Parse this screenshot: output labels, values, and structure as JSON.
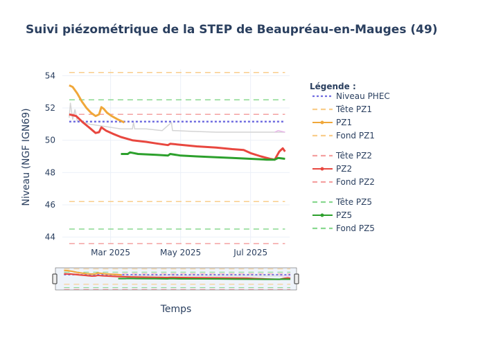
{
  "chart_data": {
    "type": "line",
    "title": "Suivi piézométrique de la STEP de Beaupréau-en-Mauges (49)",
    "xlabel": "Temps",
    "ylabel": "Niveau (NGF IGN69)",
    "ylim": [
      43.6,
      54.4
    ],
    "xlim": [
      "2025-01-18",
      "2025-08-04"
    ],
    "yticks": [
      44,
      46,
      48,
      50,
      52,
      54
    ],
    "xticks": [
      {
        "date": "2025-03-01",
        "label": "Mar 2025"
      },
      {
        "date": "2025-05-01",
        "label": "May 2025"
      },
      {
        "date": "2025-07-01",
        "label": "Jul 2025"
      }
    ],
    "grid": true,
    "legend_title": "Légende :",
    "legend_position": "right",
    "rangeslider": true,
    "series": [
      {
        "name": "Niveau PHEC",
        "style": "dotted",
        "color": "#6f6ce0",
        "x": [
          "2025-01-24",
          "2025-07-31"
        ],
        "y": [
          51.15,
          51.15
        ]
      },
      {
        "name": "Tête PZ1",
        "style": "dashed",
        "color": "#f9cd8b",
        "x": [
          "2025-01-24",
          "2025-07-31"
        ],
        "y": [
          54.2,
          54.2
        ]
      },
      {
        "name": "PZ1",
        "style": "solid",
        "color": "#f0a73a",
        "width": 3,
        "x": [
          "2025-01-24",
          "2025-01-27",
          "2025-01-31",
          "2025-02-04",
          "2025-02-08",
          "2025-02-12",
          "2025-02-16",
          "2025-02-19",
          "2025-02-21",
          "2025-02-23",
          "2025-02-26",
          "2025-03-02",
          "2025-03-07",
          "2025-03-13"
        ],
        "y": [
          53.4,
          53.3,
          52.9,
          52.4,
          52.0,
          51.7,
          51.5,
          51.6,
          52.05,
          51.95,
          51.7,
          51.5,
          51.3,
          51.1
        ]
      },
      {
        "name": "Fond PZ1",
        "style": "dashed",
        "color": "#f9cd8b",
        "x": [
          "2025-01-24",
          "2025-07-31"
        ],
        "y": [
          46.2,
          46.2
        ]
      },
      {
        "name": "Tête PZ2",
        "style": "dashed",
        "color": "#f4a0a0",
        "x": [
          "2025-01-24",
          "2025-07-31"
        ],
        "y": [
          51.6,
          51.6
        ]
      },
      {
        "name": "PZ2",
        "style": "solid",
        "color": "#e8473f",
        "width": 3,
        "x": [
          "2025-01-24",
          "2025-01-30",
          "2025-02-05",
          "2025-02-11",
          "2025-02-16",
          "2025-02-19",
          "2025-02-21",
          "2025-02-25",
          "2025-03-03",
          "2025-03-10",
          "2025-03-20",
          "2025-04-01",
          "2025-04-10",
          "2025-04-20",
          "2025-04-22",
          "2025-05-01",
          "2025-05-15",
          "2025-06-01",
          "2025-06-15",
          "2025-06-25",
          "2025-07-01",
          "2025-07-10",
          "2025-07-18",
          "2025-07-22",
          "2025-07-26",
          "2025-07-29",
          "2025-07-31"
        ],
        "y": [
          51.6,
          51.5,
          51.1,
          50.75,
          50.45,
          50.5,
          50.8,
          50.6,
          50.4,
          50.2,
          50.0,
          49.9,
          49.8,
          49.7,
          49.78,
          49.72,
          49.62,
          49.55,
          49.45,
          49.4,
          49.2,
          49.0,
          48.85,
          48.8,
          49.3,
          49.5,
          49.3
        ]
      },
      {
        "name": "Fond PZ2",
        "style": "dashed",
        "color": "#f4a0a0",
        "x": [
          "2025-01-24",
          "2025-07-31"
        ],
        "y": [
          43.6,
          43.6
        ]
      },
      {
        "name": "Tête PZ5",
        "style": "dashed",
        "color": "#88d88f",
        "x": [
          "2025-01-24",
          "2025-07-31"
        ],
        "y": [
          52.5,
          52.5
        ]
      },
      {
        "name": "PZ5",
        "style": "solid",
        "color": "#2ca02c",
        "width": 3,
        "x": [
          "2025-03-10",
          "2025-03-16",
          "2025-03-18",
          "2025-03-25",
          "2025-04-10",
          "2025-04-20",
          "2025-04-22",
          "2025-05-01",
          "2025-05-15",
          "2025-06-01",
          "2025-06-15",
          "2025-07-01",
          "2025-07-15",
          "2025-07-22",
          "2025-07-25",
          "2025-07-31"
        ],
        "y": [
          49.15,
          49.15,
          49.25,
          49.15,
          49.1,
          49.05,
          49.15,
          49.05,
          49.0,
          48.95,
          48.9,
          48.85,
          48.8,
          48.8,
          48.9,
          48.85
        ]
      },
      {
        "name": "Fond PZ5",
        "style": "dashed",
        "color": "#88d88f",
        "x": [
          "2025-01-24",
          "2025-07-31"
        ],
        "y": [
          44.5,
          44.5
        ]
      },
      {
        "style": "solid",
        "color": "#d4d4d4",
        "width": 1.5,
        "x": [
          "2025-01-24",
          "2025-01-25",
          "2025-01-27",
          "2025-01-29",
          "2025-01-31",
          "2025-02-03",
          "2025-02-10",
          "2025-02-20",
          "2025-03-01",
          "2025-03-10",
          "2025-03-20",
          "2025-03-21",
          "2025-03-22",
          "2025-04-01",
          "2025-04-15",
          "2025-04-23",
          "2025-04-24",
          "2025-04-26",
          "2025-05-10",
          "2025-06-01",
          "2025-07-01",
          "2025-07-20",
          "2025-07-31"
        ],
        "y": [
          51.4,
          52.3,
          51.3,
          51.9,
          51.2,
          51.2,
          51.0,
          50.9,
          50.8,
          50.7,
          50.7,
          51.1,
          50.7,
          50.7,
          50.6,
          51.1,
          50.6,
          50.6,
          50.55,
          50.5,
          50.5,
          50.5,
          50.5
        ]
      },
      {
        "style": "solid",
        "color": "#e9b8ea",
        "width": 1.5,
        "x": [
          "2025-07-22",
          "2025-07-25",
          "2025-07-31"
        ],
        "y": [
          50.5,
          50.6,
          50.5
        ]
      }
    ]
  }
}
